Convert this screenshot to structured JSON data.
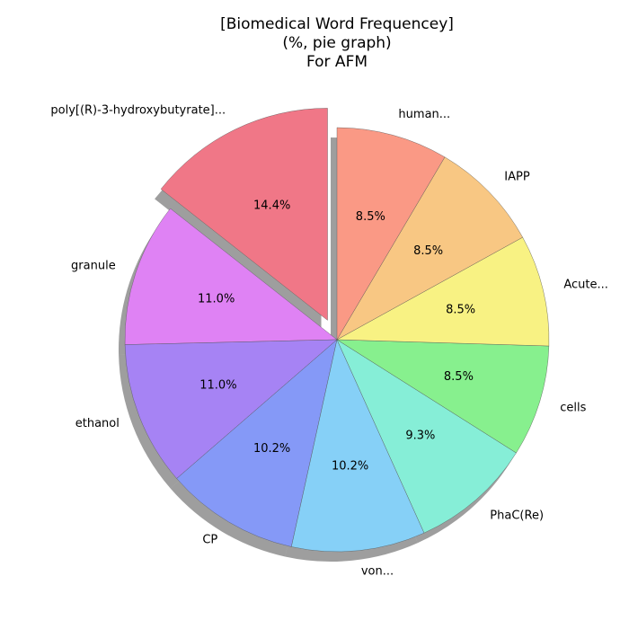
{
  "chart_data": {
    "type": "pie",
    "title_lines": [
      "[Biomedical Word Frequencey]",
      "(%, pie graph)",
      "For AFM"
    ],
    "labels": [
      "poly[(R)-3-hydroxybutyrate]...",
      "granule",
      "ethanol",
      "CP",
      "von...",
      "PhaC(Re)",
      "cells",
      "Acute...",
      "IAPP",
      "human..."
    ],
    "values": [
      14.4,
      11.0,
      11.0,
      10.2,
      10.2,
      9.3,
      8.5,
      8.5,
      8.5,
      8.5
    ],
    "value_labels": [
      "14.4%",
      "11.0%",
      "11.0%",
      "10.2%",
      "10.2%",
      "9.3%",
      "8.5%",
      "8.5%",
      "8.5%",
      "8.5%"
    ],
    "colors": [
      "#f07787",
      "#df82f4",
      "#a683f4",
      "#8599f7",
      "#86d0f7",
      "#86eed7",
      "#87f08e",
      "#f8f283",
      "#f8c783",
      "#fa9985"
    ],
    "exploded": [
      "poly[(R)-3-hydroxybutyrate]..."
    ],
    "start_angle_deg": 90,
    "direction": "counterclockwise",
    "shadow": true
  }
}
